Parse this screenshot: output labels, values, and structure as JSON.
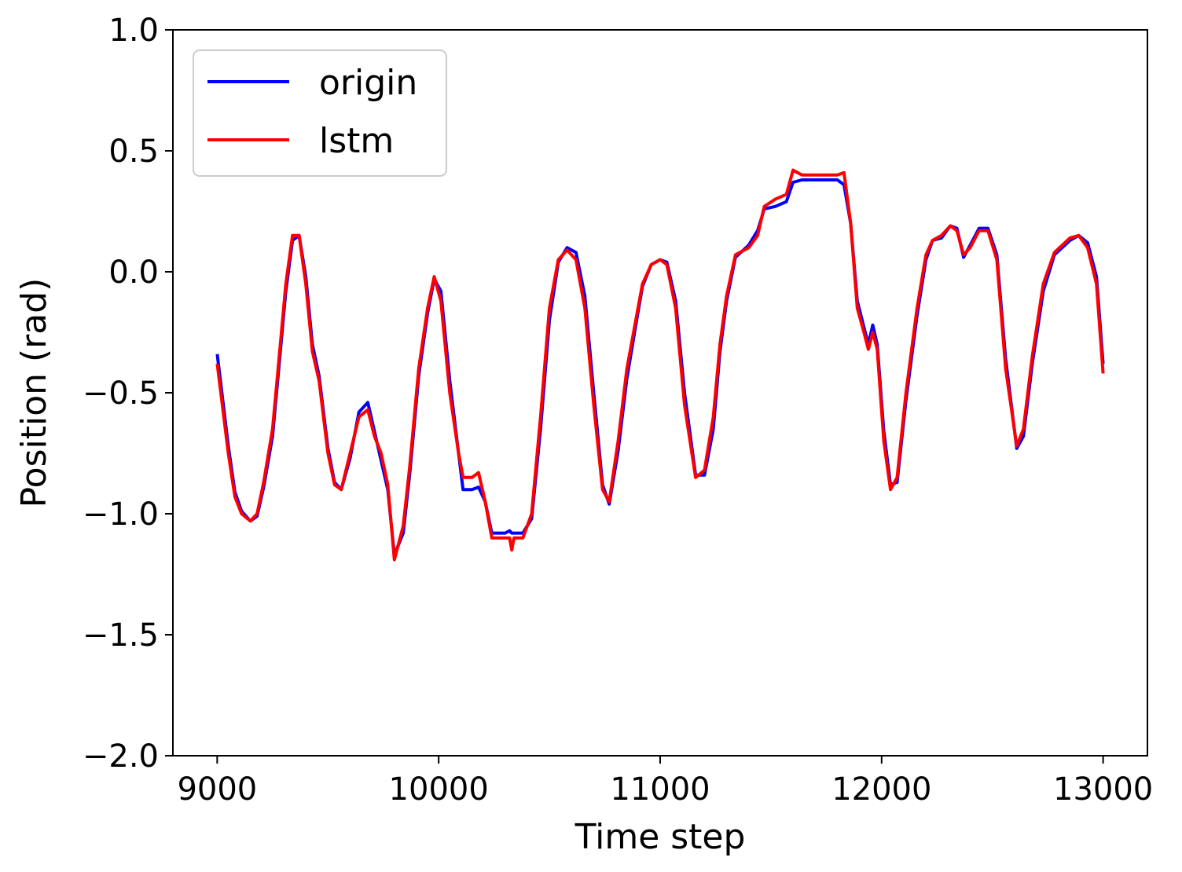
{
  "chart_data": {
    "type": "line",
    "title": "",
    "xlabel": "Time step",
    "ylabel": "Position (rad)",
    "xlim": [
      8800,
      13200
    ],
    "ylim": [
      -2.0,
      1.0
    ],
    "xticks": [
      9000,
      10000,
      11000,
      12000,
      13000
    ],
    "xtick_labels": [
      "9000",
      "10000",
      "11000",
      "12000",
      "13000"
    ],
    "yticks": [
      1.0,
      0.5,
      0.0,
      -0.5,
      -1.0,
      -1.5,
      -2.0
    ],
    "ytick_labels": [
      "1.0",
      "0.5",
      "0.0",
      "−0.5",
      "−1.0",
      "−1.5",
      "−2.0"
    ],
    "grid": false,
    "legend_position": "top-left",
    "x": [
      9000,
      9050,
      9080,
      9110,
      9150,
      9180,
      9210,
      9250,
      9280,
      9310,
      9340,
      9370,
      9400,
      9430,
      9460,
      9500,
      9530,
      9560,
      9600,
      9640,
      9680,
      9710,
      9740,
      9770,
      9800,
      9840,
      9870,
      9910,
      9950,
      9980,
      10010,
      10050,
      10090,
      10110,
      10150,
      10180,
      10210,
      10240,
      10300,
      10320,
      10330,
      10340,
      10380,
      10420,
      10460,
      10500,
      10540,
      10580,
      10620,
      10660,
      10700,
      10740,
      10770,
      10810,
      10850,
      10890,
      10920,
      10960,
      11000,
      11030,
      11070,
      11110,
      11160,
      11200,
      11240,
      11270,
      11300,
      11340,
      11400,
      11440,
      11470,
      11520,
      11570,
      11600,
      11640,
      11800,
      11830,
      11860,
      11890,
      11920,
      11940,
      11960,
      11980,
      12010,
      12040,
      12070,
      12110,
      12160,
      12200,
      12230,
      12270,
      12310,
      12340,
      12370,
      12400,
      12440,
      12480,
      12520,
      12560,
      12610,
      12640,
      12680,
      12730,
      12780,
      12850,
      12890,
      12930,
      12970,
      13000
    ],
    "series": [
      {
        "name": "origin",
        "color": "#0000ff",
        "values": [
          -0.34,
          -0.72,
          -0.91,
          -0.99,
          -1.03,
          -1.01,
          -0.89,
          -0.68,
          -0.38,
          -0.08,
          0.13,
          0.15,
          -0.02,
          -0.3,
          -0.43,
          -0.73,
          -0.87,
          -0.9,
          -0.77,
          -0.58,
          -0.54,
          -0.66,
          -0.78,
          -0.9,
          -1.17,
          -1.08,
          -0.83,
          -0.43,
          -0.17,
          -0.03,
          -0.08,
          -0.45,
          -0.75,
          -0.9,
          -0.9,
          -0.89,
          -0.95,
          -1.08,
          -1.08,
          -1.07,
          -1.08,
          -1.08,
          -1.08,
          -1.02,
          -0.65,
          -0.2,
          0.04,
          0.1,
          0.08,
          -0.1,
          -0.5,
          -0.88,
          -0.96,
          -0.74,
          -0.44,
          -0.22,
          -0.06,
          0.03,
          0.05,
          0.04,
          -0.12,
          -0.5,
          -0.84,
          -0.84,
          -0.65,
          -0.33,
          -0.12,
          0.06,
          0.11,
          0.17,
          0.26,
          0.27,
          0.29,
          0.37,
          0.38,
          0.38,
          0.36,
          0.2,
          -0.12,
          -0.23,
          -0.3,
          -0.22,
          -0.3,
          -0.66,
          -0.88,
          -0.87,
          -0.53,
          -0.18,
          0.05,
          0.13,
          0.14,
          0.19,
          0.18,
          0.06,
          0.11,
          0.18,
          0.18,
          0.07,
          -0.36,
          -0.73,
          -0.68,
          -0.38,
          -0.08,
          0.07,
          0.13,
          0.15,
          0.12,
          -0.02,
          -0.38
        ]
      },
      {
        "name": "lstm",
        "color": "#ff0000",
        "values": [
          -0.38,
          -0.75,
          -0.93,
          -1.0,
          -1.03,
          -1.0,
          -0.87,
          -0.65,
          -0.35,
          -0.05,
          0.15,
          0.15,
          -0.05,
          -0.33,
          -0.45,
          -0.75,
          -0.88,
          -0.9,
          -0.75,
          -0.6,
          -0.57,
          -0.68,
          -0.75,
          -0.88,
          -1.19,
          -1.05,
          -0.8,
          -0.4,
          -0.15,
          -0.02,
          -0.12,
          -0.5,
          -0.75,
          -0.85,
          -0.85,
          -0.83,
          -0.95,
          -1.1,
          -1.1,
          -1.1,
          -1.15,
          -1.1,
          -1.1,
          -1.0,
          -0.6,
          -0.15,
          0.05,
          0.09,
          0.05,
          -0.15,
          -0.55,
          -0.9,
          -0.95,
          -0.7,
          -0.4,
          -0.2,
          -0.05,
          0.03,
          0.05,
          0.03,
          -0.15,
          -0.55,
          -0.85,
          -0.82,
          -0.6,
          -0.3,
          -0.1,
          0.07,
          0.1,
          0.15,
          0.27,
          0.3,
          0.32,
          0.42,
          0.4,
          0.4,
          0.41,
          0.2,
          -0.15,
          -0.25,
          -0.32,
          -0.25,
          -0.32,
          -0.7,
          -0.9,
          -0.85,
          -0.5,
          -0.15,
          0.07,
          0.13,
          0.15,
          0.19,
          0.17,
          0.07,
          0.1,
          0.17,
          0.17,
          0.05,
          -0.4,
          -0.72,
          -0.65,
          -0.35,
          -0.05,
          0.08,
          0.14,
          0.15,
          0.1,
          -0.05,
          -0.42
        ]
      }
    ]
  }
}
